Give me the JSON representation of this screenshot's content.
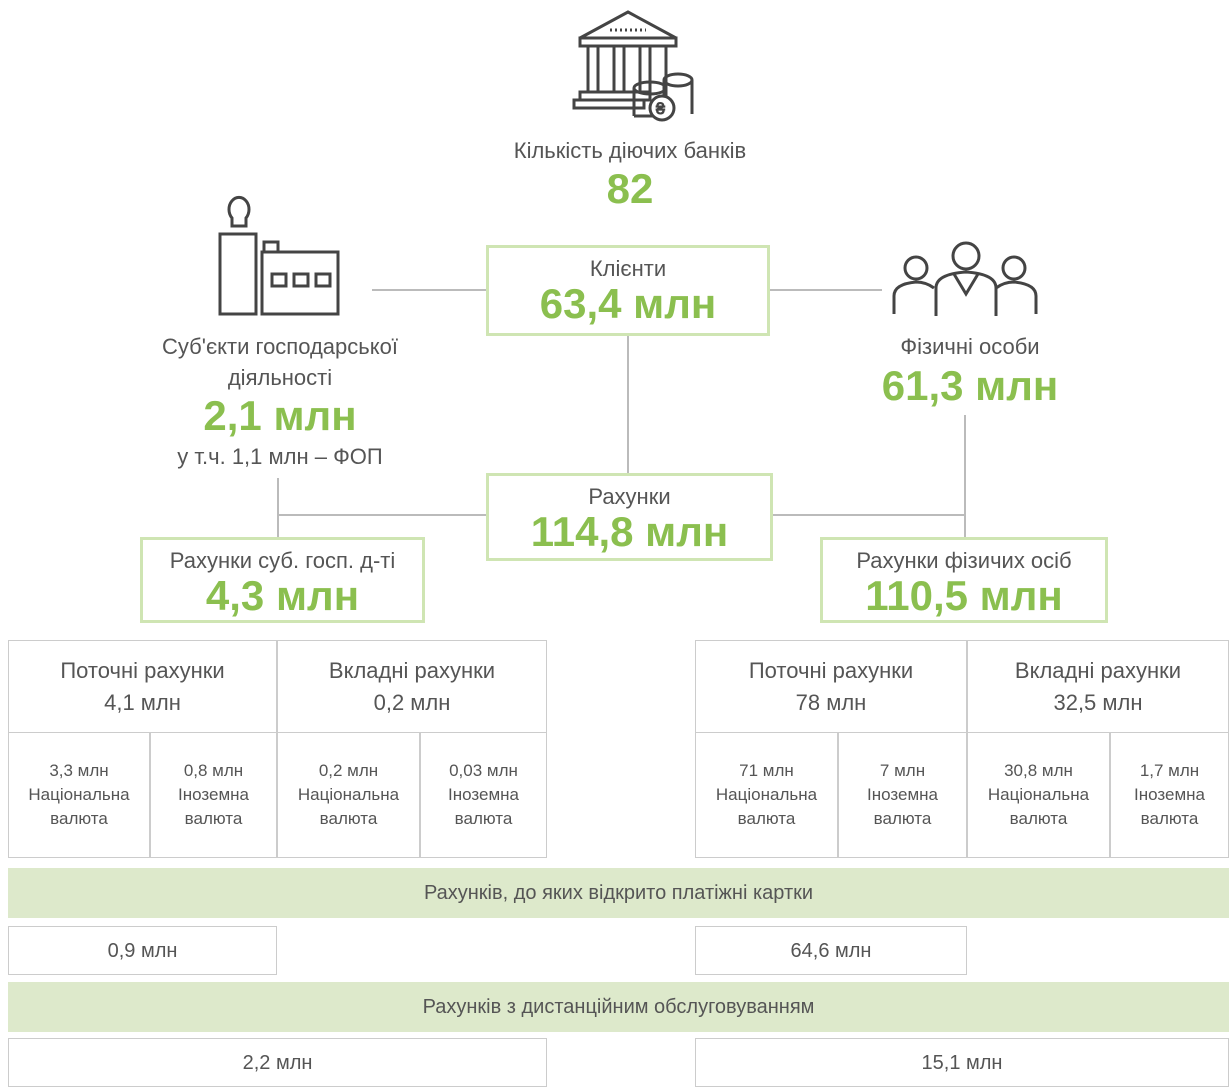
{
  "banks": {
    "label": "Кількість діючих банків",
    "value": "82"
  },
  "clients": {
    "label": "Клієнти",
    "value": "63,4 млн"
  },
  "business": {
    "label_lines": [
      "Суб'єкти господарської",
      "діяльності"
    ],
    "value": "2,1 млн",
    "note": "у т.ч. 1,1 млн – ФОП"
  },
  "individuals": {
    "label": "Фізичні особи",
    "value": "61,3 млн"
  },
  "accounts": {
    "label": "Рахунки",
    "value": "114,8 млн"
  },
  "business_accounts": {
    "label": "Рахунки суб. госп. д-ті",
    "value": "4,3 млн"
  },
  "individual_accounts": {
    "label": "Рахунки фізичих осіб",
    "value": "110,5 млн"
  },
  "business_table": [
    {
      "label": "Поточні рахунки",
      "value": "4,1 млн",
      "parts": [
        {
          "value": "3,3 млн",
          "label": "Національна валюта"
        },
        {
          "value": "0,8 млн",
          "label": "Іноземна валюта"
        }
      ]
    },
    {
      "label": "Вкладні рахунки",
      "value": "0,2 млн",
      "parts": [
        {
          "value": "0,2 млн",
          "label": "Національна валюта"
        },
        {
          "value": "0,03 млн",
          "label": "Іноземна валюта"
        }
      ]
    }
  ],
  "individual_table": [
    {
      "label": "Поточні рахунки",
      "value": "78 млн",
      "parts": [
        {
          "value": "71 млн",
          "label": "Національна валюта"
        },
        {
          "value": "7 млн",
          "label": "Іноземна валюта"
        }
      ]
    },
    {
      "label": "Вкладні рахунки",
      "value": "32,5 млн",
      "parts": [
        {
          "value": "30,8 млн",
          "label": "Національна валюта"
        },
        {
          "value": "1,7 млн",
          "label": "Іноземна валюта"
        }
      ]
    }
  ],
  "cards": {
    "label": "Рахунків, до яких відкрито платіжні картки",
    "business": "0,9 млн",
    "individuals": "64,6 млн"
  },
  "remote": {
    "label": "Рахунків з дистанційним обслуговуванням",
    "business": "2,2 млн",
    "individuals": "15,1 млн"
  }
}
